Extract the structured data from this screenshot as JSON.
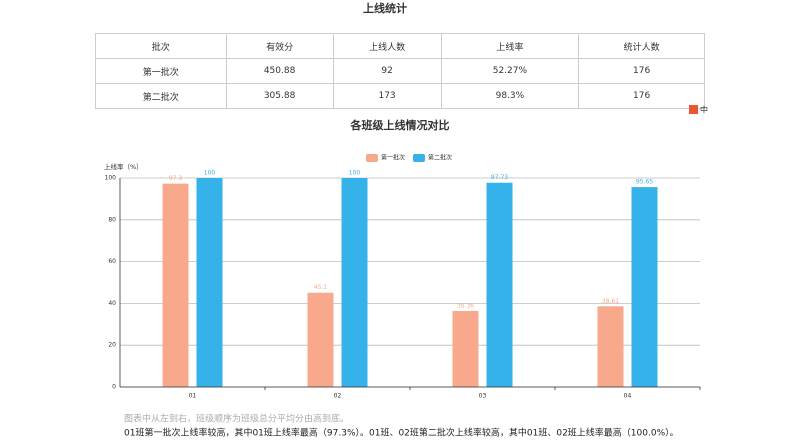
{
  "header": {
    "title": "上线统计"
  },
  "table": {
    "columns": [
      "批次",
      "有效分",
      "上线人数",
      "上线率",
      "统计人数"
    ],
    "rows": [
      [
        "第一批次",
        "450.88",
        "92",
        "52.27%",
        "176"
      ],
      [
        "第二批次",
        "305.88",
        "173",
        "98.3%",
        "176"
      ]
    ]
  },
  "ime_indicator": "中",
  "chart_data": {
    "type": "bar",
    "title": "各班级上线情况对比",
    "y_label": "上线率（%）",
    "categories": [
      "01",
      "02",
      "03",
      "04"
    ],
    "series": [
      {
        "name": "第一批次",
        "color": "#f9a98b",
        "values": [
          97.3,
          45.1,
          36.36,
          38.61
        ]
      },
      {
        "name": "第二批次",
        "color": "#35b2ea",
        "values": [
          100,
          100,
          97.73,
          95.65
        ]
      }
    ],
    "ylim": [
      0,
      100
    ],
    "yticks": [
      0,
      20,
      40,
      60,
      80,
      100
    ],
    "grid": true,
    "legend": "top"
  },
  "notes": [
    "图表中从左到右，班级顺序为班级总分平均分由高到底。",
    "01班第一批次上线率较高，其中01班上线率最高（97.3%）。01班、02班第二批次上线率较高，其中01班、02班上线率最高（100.0%）。"
  ]
}
